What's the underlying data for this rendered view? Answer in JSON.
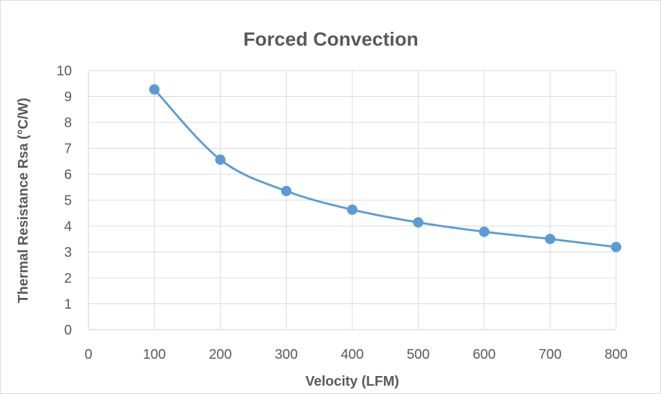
{
  "chart_data": {
    "type": "line",
    "title": "Forced Convection",
    "xlabel": "Velocity (LFM)",
    "ylabel": "Thermal Resistance Rsa (°C/W)",
    "xlim": [
      0,
      800
    ],
    "ylim": [
      0,
      10
    ],
    "x_ticks": [
      0,
      100,
      200,
      300,
      400,
      500,
      600,
      700,
      800
    ],
    "y_ticks": [
      0,
      1,
      2,
      3,
      4,
      5,
      6,
      7,
      8,
      9,
      10
    ],
    "grid": true,
    "smooth": true,
    "series": [
      {
        "x": [
          100,
          200,
          300,
          400,
          500,
          600,
          700,
          800
        ],
        "y": [
          9.27,
          6.56,
          5.35,
          4.63,
          4.14,
          3.78,
          3.5,
          3.19
        ],
        "color": "#5b9bd5",
        "marker": "circle"
      }
    ]
  }
}
